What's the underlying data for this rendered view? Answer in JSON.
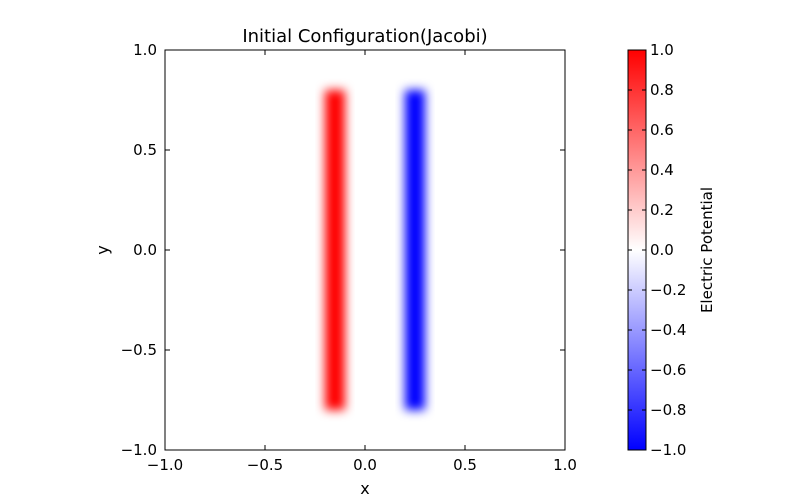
{
  "chart_data": {
    "type": "heatmap",
    "title": "Initial Configuration(Jacobi)",
    "xlabel": "x",
    "ylabel": "y",
    "xlim": [
      -1.0,
      1.0
    ],
    "ylim": [
      -1.0,
      1.0
    ],
    "xticks": [
      "−1.0",
      "−0.5",
      "0.0",
      "0.5",
      "1.0"
    ],
    "yticks": [
      "−1.0",
      "−0.5",
      "0.0",
      "0.5",
      "1.0"
    ],
    "grid": false,
    "colorbar": {
      "label": "Electric Potential",
      "range": [
        -1.0,
        1.0
      ],
      "ticks": [
        "−1.0",
        "−0.8",
        "−0.6",
        "−0.4",
        "−0.2",
        "0.0",
        "0.2",
        "0.4",
        "0.6",
        "0.8",
        "1.0"
      ],
      "colormap": "bwr",
      "low_color": "#0000ff",
      "mid_color": "#ffffff",
      "high_color": "#ff0000"
    },
    "regions": [
      {
        "name": "positive-plate",
        "x_center": -0.15,
        "y_range": [
          -0.8,
          0.8
        ],
        "value": 1.0
      },
      {
        "name": "negative-plate",
        "x_center": 0.25,
        "y_range": [
          -0.8,
          0.8
        ],
        "value": -1.0
      }
    ]
  }
}
